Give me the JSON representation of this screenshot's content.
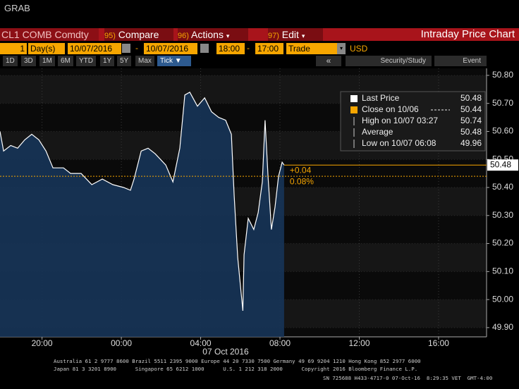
{
  "window_title": "GRAB",
  "toolbar": {
    "security": "CL1 COMB Comdty",
    "menu": [
      {
        "code": "95)",
        "label": "Compare"
      },
      {
        "code": "96)",
        "label": "Actions"
      },
      {
        "code": "97)",
        "label": "Edit"
      }
    ],
    "panel_title": "Intraday Price Chart",
    "range_count": "1",
    "range_unit": "Day(s)",
    "start_date": "10/07/2016",
    "end_date": "10/07/2016",
    "start_time": "18:00",
    "end_time": "17:00",
    "field": "Trade",
    "currency": "USD",
    "periods": [
      "1D",
      "3D",
      "1M",
      "6M",
      "YTD",
      "1Y",
      "5Y",
      "Max"
    ],
    "active_period": "Tick",
    "right_buttons": [
      "Security/Study",
      "Event"
    ]
  },
  "chart_data": {
    "type": "line",
    "x_label": "07 Oct 2016",
    "x": [
      -6.12,
      -5.94,
      -5.58,
      -5.23,
      -4.87,
      -4.52,
      -4.16,
      -3.8,
      -3.45,
      -2.92,
      -2.56,
      -2.03,
      -1.49,
      -0.96,
      -0.43,
      0.11,
      0.46,
      0.64,
      1.0,
      1.35,
      1.71,
      2.24,
      2.6,
      2.95,
      3.2,
      3.45,
      3.84,
      4.2,
      4.55,
      4.91,
      5.26,
      5.55,
      5.69,
      5.87,
      6.13,
      6.19,
      6.4,
      6.68,
      6.9,
      7.11,
      7.25,
      7.4,
      7.57,
      7.75,
      7.93,
      8.11,
      8.21
    ],
    "series": [
      {
        "name": "Last Price",
        "color": "#ffffff",
        "fill": "#163458",
        "values": [
          50.6,
          50.53,
          50.55,
          50.54,
          50.57,
          50.59,
          50.57,
          50.53,
          50.47,
          50.47,
          50.45,
          50.45,
          50.41,
          50.43,
          50.41,
          50.4,
          50.39,
          50.43,
          50.53,
          50.54,
          50.52,
          50.48,
          50.42,
          50.54,
          50.73,
          50.74,
          50.69,
          50.72,
          50.67,
          50.65,
          50.64,
          50.59,
          50.37,
          50.15,
          49.96,
          50.16,
          50.29,
          50.25,
          50.31,
          50.42,
          50.64,
          50.44,
          50.25,
          50.33,
          50.44,
          50.49,
          50.48
        ]
      }
    ],
    "stats": [
      {
        "label": "Last Price",
        "value": 50.48,
        "color": "#ffffff"
      },
      {
        "label": "Close on 10/06",
        "value": 50.44,
        "color": "#f7a600"
      },
      {
        "label": "High on 10/07 03:27",
        "value": 50.74,
        "color": "#cccccc"
      },
      {
        "label": "Average",
        "value": 50.48,
        "color": "#cccccc"
      },
      {
        "label": "Low on 10/07 06:08",
        "value": 49.96,
        "color": "#cccccc"
      }
    ],
    "change": {
      "value": 0.04,
      "label": "+0.04"
    },
    "change_pct": {
      "value": 0.08,
      "label": "0.08%"
    },
    "xlim": [
      -6.12,
      18.42
    ],
    "xticks": [
      {
        "value": -4,
        "label": "20:00"
      },
      {
        "value": 0,
        "label": "00:00"
      },
      {
        "value": 4,
        "label": "04:00"
      },
      {
        "value": 8,
        "label": "08:00"
      },
      {
        "value": 12,
        "label": "12:00"
      },
      {
        "value": 16,
        "label": "16:00"
      }
    ],
    "ylim": [
      49.867,
      50.825
    ],
    "yticks": [
      {
        "value": 49.9,
        "label": "49.90"
      },
      {
        "value": 50,
        "label": "50.00"
      },
      {
        "value": 50.1,
        "label": "50.10"
      },
      {
        "value": 50.2,
        "label": "50.20"
      },
      {
        "value": 50.3,
        "label": "50.30"
      },
      {
        "value": 50.4,
        "label": "50.40"
      },
      {
        "value": 50.5,
        "label": "50.50"
      },
      {
        "value": 50.6,
        "label": "50.60"
      },
      {
        "value": 50.7,
        "label": "50.70"
      },
      {
        "value": 50.8,
        "label": "50.80"
      }
    ],
    "grid": true
  },
  "footer": [
    "Australia 61 2 9777 8600 Brazil 5511 2395 9000 Europe 44 20 7330 7500 Germany 49 69 9204 1210 Hong Kong 852 2977 6000",
    "Japan 81 3 3201 8900      Singapore 65 6212 1000      U.S. 1 212 318 2000      Copyright 2016 Bloomberg Finance L.P.",
    "SN 725688 H433-4717-0 07-Oct-16  8:29:35 VET  GMT-4:00"
  ]
}
